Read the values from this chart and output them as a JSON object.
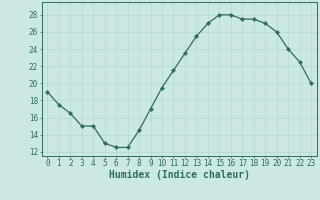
{
  "x": [
    0,
    1,
    2,
    3,
    4,
    5,
    6,
    7,
    8,
    9,
    10,
    11,
    12,
    13,
    14,
    15,
    16,
    17,
    18,
    19,
    20,
    21,
    22,
    23
  ],
  "y": [
    19,
    17.5,
    16.5,
    15,
    15,
    13,
    12.5,
    12.5,
    14.5,
    17,
    19.5,
    21.5,
    23.5,
    25.5,
    27,
    28,
    28,
    27.5,
    27.5,
    27,
    26,
    24,
    22.5,
    20
  ],
  "line_color": "#2e6b63",
  "marker": "D",
  "marker_size": 2.2,
  "xlabel": "Humidex (Indice chaleur)",
  "xlim": [
    -0.5,
    23.5
  ],
  "ylim": [
    11.5,
    29.5
  ],
  "yticks": [
    12,
    14,
    16,
    18,
    20,
    22,
    24,
    26,
    28
  ],
  "xticks": [
    0,
    1,
    2,
    3,
    4,
    5,
    6,
    7,
    8,
    9,
    10,
    11,
    12,
    13,
    14,
    15,
    16,
    17,
    18,
    19,
    20,
    21,
    22,
    23
  ],
  "bg_color": "#cce8e3",
  "grid_color": "#b8d8d2",
  "axis_color": "#2e6b63",
  "tick_color": "#2e6b63",
  "label_color": "#2e6b63",
  "xlabel_fontsize": 7,
  "tick_fontsize": 5.5,
  "linewidth": 0.9
}
